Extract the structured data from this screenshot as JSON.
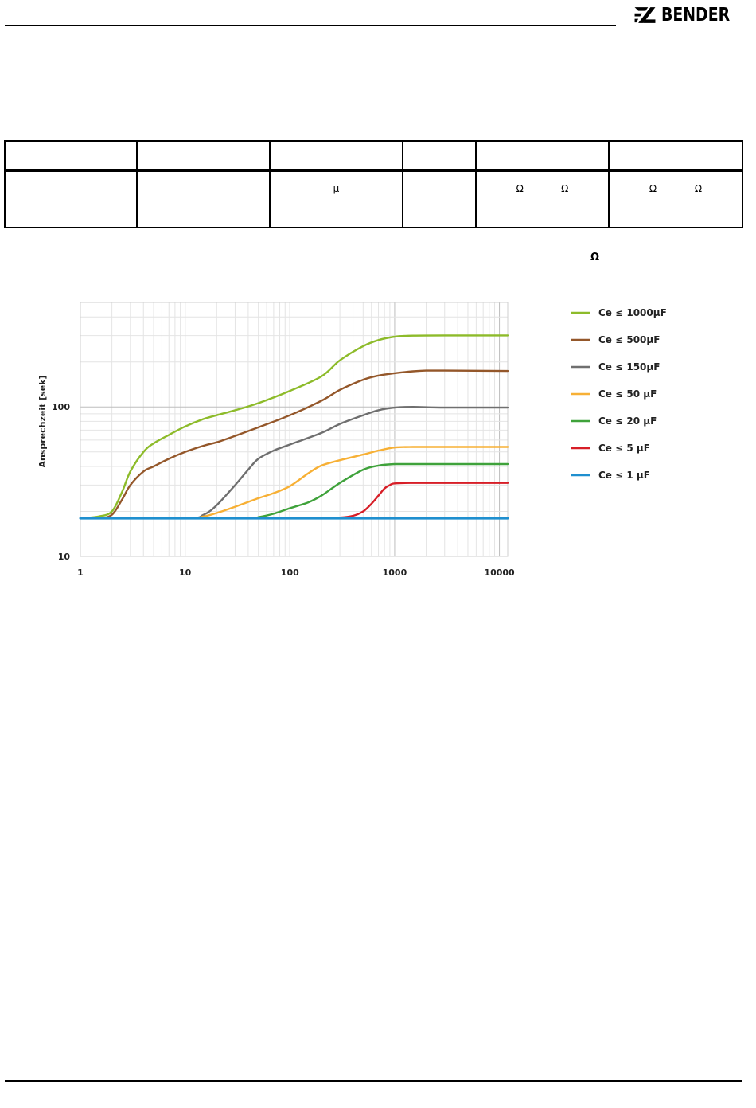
{
  "header": {
    "brand": "BENDER"
  },
  "table": {
    "header_cells": [
      "",
      "",
      "",
      "",
      "",
      ""
    ],
    "row_cells": [
      "",
      "",
      "μ",
      "",
      [
        "Ω",
        "Ω"
      ],
      [
        "Ω",
        "Ω"
      ]
    ]
  },
  "omega_label": "Ω",
  "chart_data": {
    "type": "line",
    "xscale": "log",
    "yscale": "log",
    "xlim": [
      1,
      12000
    ],
    "ylim": [
      10,
      500
    ],
    "xticks": [
      "1",
      "10",
      "100",
      "1000",
      "10000"
    ],
    "yticks": [
      "10",
      "100"
    ],
    "xlabel": "",
    "ylabel": "Ansprechzeit [sek]",
    "grid": true,
    "legend_position": "right",
    "series": [
      {
        "name": "Ce ≤ 1000µF",
        "color": "#8dbb2a",
        "x": [
          1,
          1.5,
          2,
          2.5,
          3,
          4,
          5,
          7,
          10,
          15,
          20,
          30,
          50,
          100,
          200,
          300,
          500,
          700,
          1000,
          1500,
          3000,
          12000
        ],
        "y": [
          18,
          18.5,
          20,
          27,
          37,
          50,
          57,
          65,
          74,
          83,
          88,
          95,
          106,
          128,
          160,
          205,
          255,
          280,
          295,
          300,
          301,
          301
        ]
      },
      {
        "name": "Ce ≤ 500µF",
        "color": "#94572a",
        "x": [
          1,
          1.5,
          2,
          2.5,
          3,
          4,
          5,
          7,
          10,
          15,
          20,
          30,
          50,
          100,
          200,
          300,
          500,
          700,
          1000,
          1500,
          2000,
          3000,
          12000
        ],
        "y": [
          18,
          18,
          19,
          24,
          30,
          37,
          40,
          45,
          50,
          55,
          58,
          64,
          73,
          88,
          110,
          130,
          152,
          162,
          168,
          173,
          175,
          175,
          174
        ]
      },
      {
        "name": "Ce ≤ 150µF",
        "color": "#6f6f6f",
        "x": [
          1,
          10,
          15,
          20,
          30,
          40,
          50,
          70,
          100,
          200,
          300,
          500,
          700,
          1000,
          1500,
          3000,
          12000
        ],
        "y": [
          18,
          18,
          19,
          22,
          30,
          38,
          45,
          51,
          56,
          67,
          77,
          88,
          95,
          99,
          100,
          99,
          99
        ]
      },
      {
        "name": "Ce ≤ 50 µF",
        "color": "#f7b035",
        "x": [
          1,
          10,
          15,
          20,
          30,
          50,
          70,
          100,
          150,
          200,
          300,
          500,
          700,
          1000,
          1500,
          3000,
          12000
        ],
        "y": [
          18,
          18,
          18.5,
          19.5,
          21.5,
          24.5,
          26.5,
          29.5,
          36,
          40.5,
          44,
          48,
          51,
          53.5,
          54,
          54,
          54
        ]
      },
      {
        "name": "Ce ≤ 20 µF",
        "color": "#3fa23b",
        "x": [
          1,
          40,
          50,
          70,
          100,
          150,
          200,
          300,
          500,
          700,
          1000,
          1500,
          3000,
          12000
        ],
        "y": [
          18,
          18,
          18.3,
          19.3,
          21,
          23,
          25.5,
          31,
          38,
          40.5,
          41.5,
          41.5,
          41.5,
          41.5
        ]
      },
      {
        "name": "Ce ≤ 5 µF",
        "color": "#d71e27",
        "x": [
          1,
          200,
          300,
          400,
          500,
          600,
          700,
          800,
          900,
          1000,
          1500,
          3000,
          12000
        ],
        "y": [
          18,
          18,
          18.2,
          18.7,
          20,
          22.5,
          25.5,
          28.5,
          30,
          30.8,
          31,
          31,
          31
        ]
      },
      {
        "name": "Ce ≤ 1 µF",
        "color": "#1f8fcf",
        "x": [
          1,
          12000
        ],
        "y": [
          18,
          18
        ]
      }
    ]
  }
}
